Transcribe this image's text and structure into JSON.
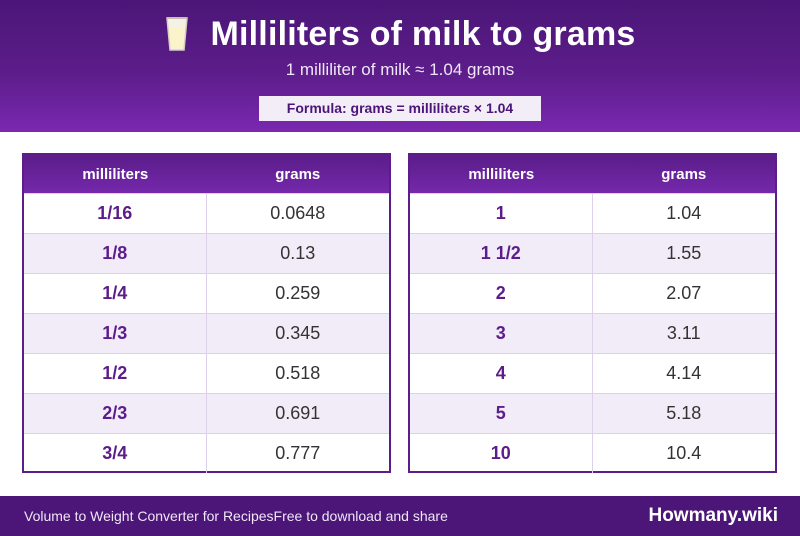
{
  "header": {
    "icon": "milk-glass-icon",
    "title": "Milliliters of milk to grams",
    "subtitle": "1 milliliter of milk ≈ 1.04 grams",
    "formula": "Formula: grams = milliliters × 1.04"
  },
  "tables": {
    "left": {
      "columns": [
        "milliliters",
        "grams"
      ],
      "rows": [
        {
          "ml": "1/16",
          "g": "0.0648"
        },
        {
          "ml": "1/8",
          "g": "0.13"
        },
        {
          "ml": "1/4",
          "g": "0.259"
        },
        {
          "ml": "1/3",
          "g": "0.345"
        },
        {
          "ml": "1/2",
          "g": "0.518"
        },
        {
          "ml": "2/3",
          "g": "0.691"
        },
        {
          "ml": "3/4",
          "g": "0.777"
        }
      ]
    },
    "right": {
      "columns": [
        "milliliters",
        "grams"
      ],
      "rows": [
        {
          "ml": "1",
          "g": "1.04"
        },
        {
          "ml": "1 1/2",
          "g": "1.55"
        },
        {
          "ml": "2",
          "g": "2.07"
        },
        {
          "ml": "3",
          "g": "3.11"
        },
        {
          "ml": "4",
          "g": "4.14"
        },
        {
          "ml": "5",
          "g": "5.18"
        },
        {
          "ml": "10",
          "g": "10.4"
        }
      ]
    }
  },
  "footer": {
    "left_text": "Volume to Weight Converter for Recipes",
    "mid_text": "Free to download and share",
    "brand": "Howmany.wiki"
  },
  "colors": {
    "primary": "#5c1d8a",
    "header_dark": "#4b1677",
    "row_alt": "#f2ecf8"
  }
}
